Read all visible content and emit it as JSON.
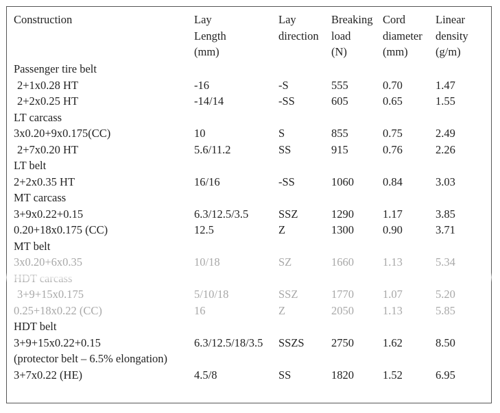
{
  "table": {
    "headers": [
      "Construction",
      "Lay\nLength\n(mm)",
      "Lay\ndirection",
      "Breaking\nload\n(N)",
      "Cord\ndiameter\n(mm)",
      "Linear\ndensity\n(g/m)"
    ],
    "rows": [
      {
        "type": "section",
        "label": "Passenger tire belt"
      },
      {
        "type": "data",
        "indent": true,
        "cells": [
          "2+1x0.28 HT",
          "-16",
          "-S",
          "555",
          "0.70",
          "1.47"
        ]
      },
      {
        "type": "data",
        "indent": true,
        "cells": [
          "2+2x0.25 HT",
          "-14/14",
          "-SS",
          "605",
          "0.65",
          "1.55"
        ]
      },
      {
        "type": "section",
        "label": "LT carcass"
      },
      {
        "type": "data",
        "indent": false,
        "cells": [
          "3x0.20+9x0.175(CC)",
          "10",
          "S",
          "855",
          "0.75",
          "2.49"
        ]
      },
      {
        "type": "data",
        "indent": true,
        "cells": [
          "2+7x0.20 HT",
          "5.6/11.2",
          "SS",
          "915",
          "0.76",
          "2.26"
        ]
      },
      {
        "type": "section",
        "label": "LT belt"
      },
      {
        "type": "data",
        "indent": false,
        "cells": [
          "2+2x0.35 HT",
          "16/16",
          "-SS",
          "1060",
          "0.84",
          "3.03"
        ]
      },
      {
        "type": "section",
        "label": "MT carcass"
      },
      {
        "type": "data",
        "indent": false,
        "cells": [
          "3+9x0.22+0.15",
          "6.3/12.5/3.5",
          "SSZ",
          "1290",
          "1.17",
          "3.85"
        ]
      },
      {
        "type": "data",
        "indent": false,
        "cells": [
          "0.20+18x0.175 (CC)",
          "12.5",
          "Z",
          "1300",
          "0.90",
          "3.71"
        ]
      },
      {
        "type": "section",
        "label": "MT belt"
      },
      {
        "type": "data",
        "indent": false,
        "faded": true,
        "cells": [
          "3x0.20+6x0.35",
          "10/18",
          "SZ",
          "1660",
          "1.13",
          "5.34"
        ]
      },
      {
        "type": "section",
        "faded": true,
        "label": "HDT carcass"
      },
      {
        "type": "data",
        "indent": true,
        "faded": true,
        "cells": [
          "3+9+15x0.175",
          "5/10/18",
          "SSZ",
          "1770",
          "1.07",
          "5.20"
        ]
      },
      {
        "type": "data",
        "indent": false,
        "faded": true,
        "cells": [
          "0.25+18x0.22 (CC)",
          "16",
          "Z",
          "2050",
          "1.13",
          "5.85"
        ]
      },
      {
        "type": "section",
        "label": "HDT belt"
      },
      {
        "type": "data",
        "indent": false,
        "cells": [
          "3+9+15x0.22+0.15",
          "6.3/12.5/18/3.5",
          "SSZS",
          "2750",
          "1.62",
          "8.50"
        ]
      },
      {
        "type": "section",
        "label": "(protector belt – 6.5% elongation)"
      },
      {
        "type": "data",
        "indent": false,
        "cells": [
          "3+7x0.22 (HE)",
          "4.5/8",
          "SS",
          "1820",
          "1.52",
          "6.95"
        ]
      }
    ]
  }
}
